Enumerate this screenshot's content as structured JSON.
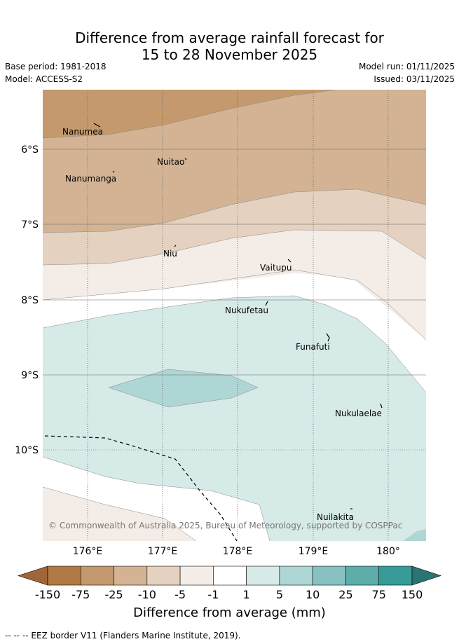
{
  "title_line1": "Difference from average rainfall forecast for",
  "title_line2": "15 to 28 November 2025",
  "base_period": "Base period: 1981-2018",
  "model": "Model: ACCESS-S2",
  "model_run": "Model run: 01/11/2025",
  "issued": "Issued: 03/11/2025",
  "copyright": "© Commonwealth of Australia 2025, Bureau of Meteorology, supported by COSPPac",
  "lat_labels": [
    "6°S",
    "7°S",
    "8°S",
    "9°S",
    "10°S"
  ],
  "lon_labels": [
    "176°E",
    "177°E",
    "178°E",
    "179°E",
    "180°"
  ],
  "islands": [
    "Nanumea",
    "Nuitao",
    "Nanumanga",
    "Niu",
    "Vaitupu",
    "Nukufetau",
    "Funafuti",
    "Nukulaelae",
    "Nuilakita"
  ],
  "colorbar": {
    "ticks": [
      "-150",
      "-75",
      "-25",
      "-10",
      "-5",
      "-1",
      "1",
      "5",
      "10",
      "25",
      "75",
      "150"
    ],
    "colors": [
      "#a0663a",
      "#b17a44",
      "#c3996d",
      "#d3b394",
      "#e4d1bf",
      "#f4ece7",
      "#ffffff",
      "#d6eae8",
      "#aed6d4",
      "#87c1c0",
      "#5dadab",
      "#379b9a",
      "#2a7574"
    ],
    "title": "Difference from average (mm)"
  },
  "footer": "-- -- -- EEZ border V11 (Flanders Marine Institute, 2019)."
}
